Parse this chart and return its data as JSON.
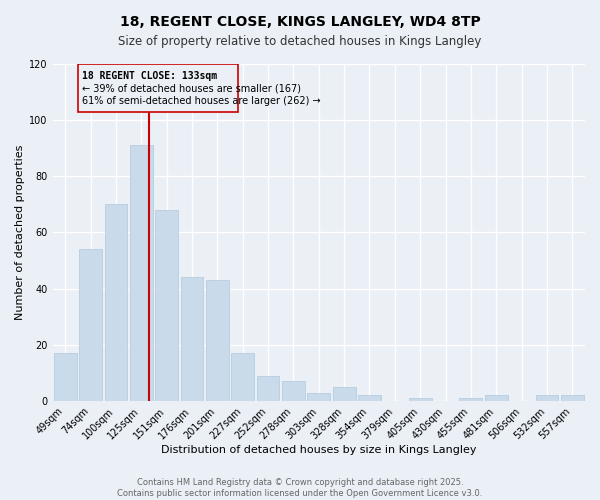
{
  "title": "18, REGENT CLOSE, KINGS LANGLEY, WD4 8TP",
  "subtitle": "Size of property relative to detached houses in Kings Langley",
  "xlabel": "Distribution of detached houses by size in Kings Langley",
  "ylabel": "Number of detached properties",
  "categories": [
    "49sqm",
    "74sqm",
    "100sqm",
    "125sqm",
    "151sqm",
    "176sqm",
    "201sqm",
    "227sqm",
    "252sqm",
    "278sqm",
    "303sqm",
    "328sqm",
    "354sqm",
    "379sqm",
    "405sqm",
    "430sqm",
    "455sqm",
    "481sqm",
    "506sqm",
    "532sqm",
    "557sqm"
  ],
  "values": [
    17,
    54,
    70,
    91,
    68,
    44,
    43,
    17,
    9,
    7,
    3,
    5,
    2,
    0,
    1,
    0,
    1,
    2,
    0,
    2,
    2
  ],
  "bar_color": "#c9daea",
  "bar_edgecolor": "#b0c8dc",
  "ylim": [
    0,
    120
  ],
  "yticks": [
    0,
    20,
    40,
    60,
    80,
    100,
    120
  ],
  "vline_index": 3.32,
  "reference_line_label": "18 REGENT CLOSE: 133sqm",
  "annotation_line2": "← 39% of detached houses are smaller (167)",
  "annotation_line3": "61% of semi-detached houses are larger (262) →",
  "vline_color": "#cc0000",
  "box_color": "#cc0000",
  "footer_line1": "Contains HM Land Registry data © Crown copyright and database right 2025.",
  "footer_line2": "Contains public sector information licensed under the Open Government Licence v3.0.",
  "background_color": "#eaf0f6",
  "grid_color": "#ffffff",
  "title_fontsize": 10,
  "subtitle_fontsize": 8.5,
  "axis_label_fontsize": 8,
  "tick_fontsize": 7,
  "annotation_fontsize": 7,
  "footer_fontsize": 6
}
